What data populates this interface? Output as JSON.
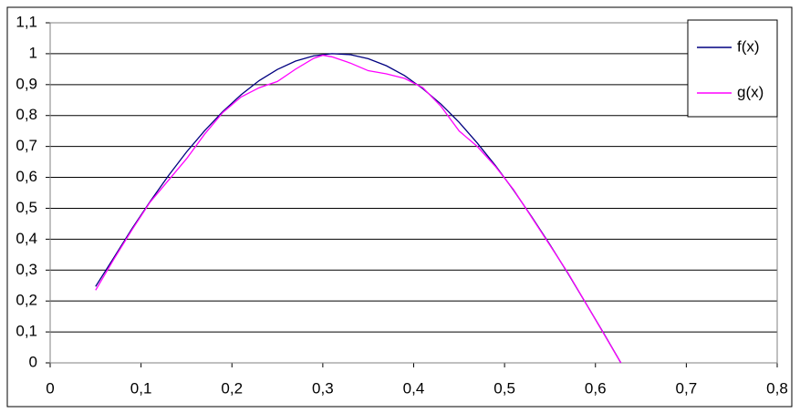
{
  "chart_data": {
    "type": "line",
    "series": [
      {
        "name": "f(x)",
        "color": "#000080",
        "x": [
          0.05,
          0.07,
          0.09,
          0.11,
          0.13,
          0.15,
          0.17,
          0.19,
          0.21,
          0.23,
          0.25,
          0.27,
          0.29,
          0.31,
          0.33,
          0.35,
          0.37,
          0.39,
          0.41,
          0.43,
          0.45,
          0.47,
          0.49,
          0.51,
          0.53,
          0.55,
          0.57,
          0.59,
          0.61,
          0.628
        ],
        "values": [
          0.247,
          0.34,
          0.434,
          0.522,
          0.605,
          0.682,
          0.751,
          0.813,
          0.867,
          0.913,
          0.949,
          0.976,
          0.993,
          1.0,
          0.997,
          0.984,
          0.961,
          0.929,
          0.887,
          0.837,
          0.778,
          0.711,
          0.638,
          0.558,
          0.472,
          0.382,
          0.288,
          0.19,
          0.091,
          0.0
        ]
      },
      {
        "name": "g(x)",
        "color": "#ff00ff",
        "x": [
          0.05,
          0.07,
          0.09,
          0.11,
          0.13,
          0.15,
          0.17,
          0.19,
          0.21,
          0.23,
          0.25,
          0.27,
          0.29,
          0.3,
          0.31,
          0.33,
          0.35,
          0.37,
          0.39,
          0.41,
          0.43,
          0.45,
          0.47,
          0.49,
          0.51,
          0.53,
          0.55,
          0.57,
          0.59,
          0.61,
          0.628
        ],
        "values": [
          0.235,
          0.335,
          0.43,
          0.52,
          0.59,
          0.66,
          0.74,
          0.81,
          0.86,
          0.89,
          0.91,
          0.95,
          0.985,
          0.995,
          0.99,
          0.97,
          0.945,
          0.935,
          0.92,
          0.89,
          0.83,
          0.75,
          0.7,
          0.635,
          0.56,
          0.47,
          0.38,
          0.29,
          0.19,
          0.09,
          0.0
        ]
      }
    ],
    "xlim": [
      0,
      0.8
    ],
    "xticks": [
      0,
      {
        "value": 0.1,
        "label": "0,1"
      },
      {
        "value": 0.2,
        "label": "0,2"
      },
      {
        "value": 0.3,
        "label": "0,3"
      },
      {
        "value": 0.4,
        "label": "0,4"
      },
      {
        "value": 0.5,
        "label": "0,5"
      },
      {
        "value": 0.6,
        "label": "0,6"
      },
      {
        "value": 0.7,
        "label": "0,7"
      },
      {
        "value": 0.8,
        "label": "0,8"
      }
    ],
    "ylim": [
      0,
      1.1
    ],
    "yticks": [
      0,
      {
        "value": 0.1,
        "label": "0,1"
      },
      {
        "value": 0.2,
        "label": "0,2"
      },
      {
        "value": 0.3,
        "label": "0,3"
      },
      {
        "value": 0.4,
        "label": "0,4"
      },
      {
        "value": 0.5,
        "label": "0,5"
      },
      {
        "value": 0.6,
        "label": "0,6"
      },
      {
        "value": 0.7,
        "label": "0,7"
      },
      {
        "value": 0.8,
        "label": "0,8"
      },
      {
        "value": 0.9,
        "label": "0,9"
      },
      1,
      {
        "value": 1.1,
        "label": "1,1"
      }
    ],
    "grid": true,
    "legend": "right"
  }
}
